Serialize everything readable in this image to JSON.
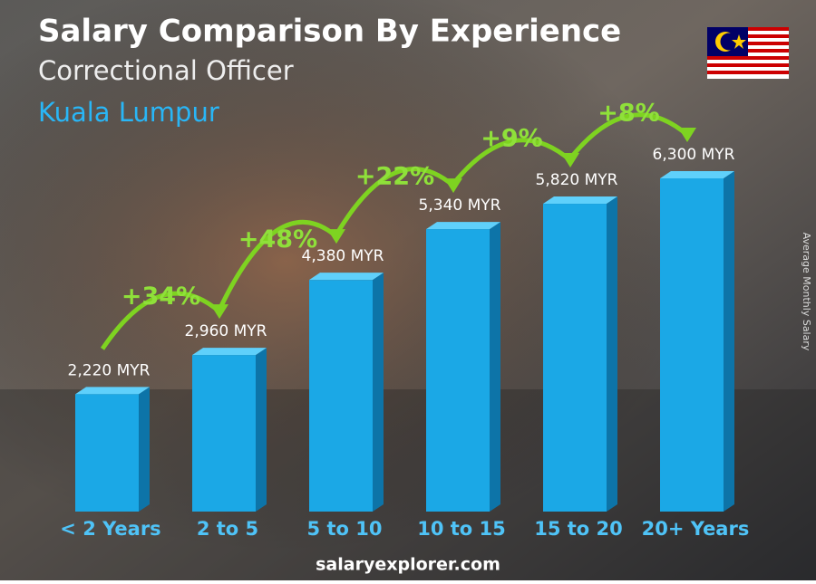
{
  "chart_data": {
    "type": "bar",
    "title": "Salary Comparison By Experience",
    "subtitle": "Correctional Officer",
    "location": "Kuala Lumpur",
    "y_axis_label": "Average Monthly Salary",
    "categories": [
      "< 2 Years",
      "2 to 5",
      "5 to 10",
      "10 to 15",
      "15 to 20",
      "20+ Years"
    ],
    "values": [
      2220,
      2960,
      4380,
      5340,
      5820,
      6300
    ],
    "value_labels": [
      "2,220 MYR",
      "2,960 MYR",
      "4,380 MYR",
      "5,340 MYR",
      "5,820 MYR",
      "6,300 MYR"
    ],
    "changes": [
      "+34%",
      "+48%",
      "+22%",
      "+9%",
      "+8%"
    ],
    "color": "#1ba8e6",
    "footer": "salaryexplorer.com"
  }
}
